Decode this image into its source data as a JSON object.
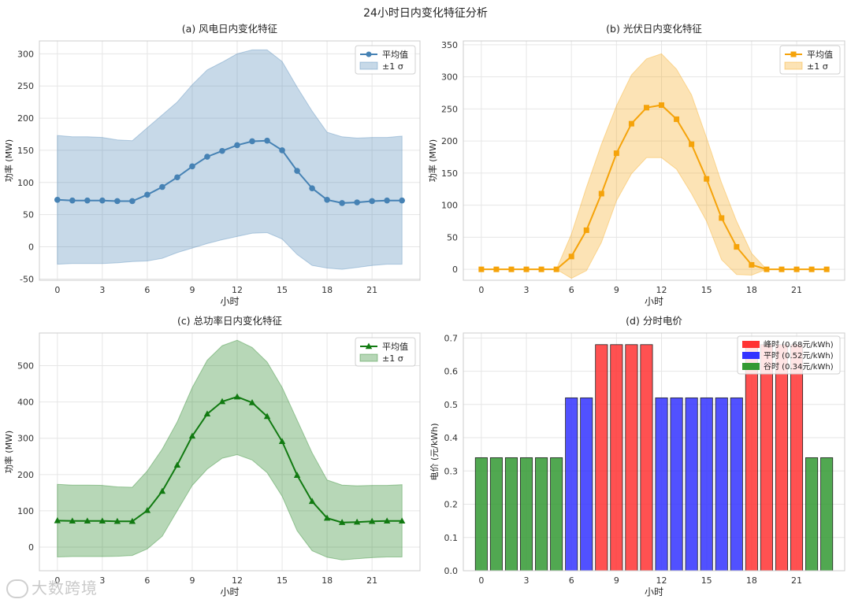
{
  "figure": {
    "suptitle": "24小时日内变化特征分析",
    "watermark": "大数跨境"
  },
  "chart_data": [
    {
      "id": "wind",
      "type": "line",
      "title": "(a) 风电日内变化特征",
      "xlabel": "小时",
      "ylabel": "功率 (MW)",
      "xlim": [
        -1.2,
        24.2
      ],
      "ylim": [
        -52,
        320
      ],
      "xticks": [
        0,
        3,
        6,
        9,
        12,
        15,
        18,
        21
      ],
      "yticks": [
        -50,
        0,
        50,
        100,
        150,
        200,
        250,
        300
      ],
      "grid": true,
      "legend_position": "top-right",
      "color": "#4682b4",
      "marker": "circle",
      "legend": [
        "平均值",
        "±1 σ"
      ],
      "x": [
        0,
        1,
        2,
        3,
        4,
        5,
        6,
        7,
        8,
        9,
        10,
        11,
        12,
        13,
        14,
        15,
        16,
        17,
        18,
        19,
        20,
        21,
        22,
        23
      ],
      "mean": [
        73,
        72,
        72,
        72,
        71,
        71,
        81,
        93,
        108,
        125,
        140,
        149,
        158,
        164,
        165,
        150,
        118,
        91,
        73,
        68,
        69,
        71,
        72,
        72
      ],
      "upper": [
        173,
        171,
        171,
        170,
        166,
        165,
        185,
        205,
        225,
        252,
        275,
        287,
        300,
        306,
        306,
        288,
        248,
        211,
        178,
        171,
        169,
        170,
        170,
        172
      ],
      "lower": [
        -27,
        -26,
        -26,
        -26,
        -25,
        -23,
        -22,
        -18,
        -9,
        -2,
        5,
        11,
        16,
        21,
        22,
        12,
        -12,
        -29,
        -33,
        -35,
        -32,
        -29,
        -27,
        -27
      ]
    },
    {
      "id": "pv",
      "type": "line",
      "title": "(b) 光伏日内变化特征",
      "xlabel": "小时",
      "ylabel": "功率 (MW)",
      "xlim": [
        -1.2,
        24.2
      ],
      "ylim": [
        -17,
        356
      ],
      "xticks": [
        0,
        3,
        6,
        9,
        12,
        15,
        18,
        21
      ],
      "yticks": [
        0,
        50,
        100,
        150,
        200,
        250,
        300,
        350
      ],
      "grid": true,
      "legend_position": "top-right",
      "color": "#f5a30a",
      "marker": "square",
      "legend": [
        "平均值",
        "±1 σ"
      ],
      "x": [
        0,
        1,
        2,
        3,
        4,
        5,
        6,
        7,
        8,
        9,
        10,
        11,
        12,
        13,
        14,
        15,
        16,
        17,
        18,
        19,
        20,
        21,
        22,
        23
      ],
      "mean": [
        0,
        0,
        0,
        0,
        0,
        0,
        20,
        61,
        118,
        181,
        227,
        252,
        256,
        234,
        195,
        141,
        80,
        35,
        7,
        0,
        0,
        0,
        0,
        0
      ],
      "upper": [
        0,
        0,
        0,
        0,
        0,
        0,
        55,
        128,
        195,
        255,
        303,
        328,
        336,
        312,
        272,
        205,
        135,
        75,
        25,
        0,
        0,
        0,
        0,
        0
      ],
      "lower": [
        0,
        0,
        0,
        0,
        0,
        0,
        -14,
        -2,
        42,
        107,
        149,
        174,
        174,
        156,
        118,
        75,
        15,
        -8,
        -9,
        0,
        0,
        0,
        0,
        0
      ]
    },
    {
      "id": "total",
      "type": "line",
      "title": "(c) 总功率日内变化特征",
      "xlabel": "小时",
      "ylabel": "功率 (MW)",
      "xlim": [
        -1.2,
        24.2
      ],
      "ylim": [
        -65,
        590
      ],
      "xticks": [
        0,
        3,
        6,
        9,
        12,
        15,
        18,
        21
      ],
      "yticks": [
        0,
        100,
        200,
        300,
        400,
        500
      ],
      "grid": true,
      "legend_position": "top-right",
      "color": "#117a11",
      "marker": "triangle",
      "legend": [
        "平均值",
        "±1 σ"
      ],
      "x": [
        0,
        1,
        2,
        3,
        4,
        5,
        6,
        7,
        8,
        9,
        10,
        11,
        12,
        13,
        14,
        15,
        16,
        17,
        18,
        19,
        20,
        21,
        22,
        23
      ],
      "mean": [
        73,
        72,
        72,
        72,
        71,
        71,
        101,
        154,
        226,
        306,
        367,
        401,
        414,
        398,
        360,
        291,
        198,
        126,
        80,
        68,
        69,
        71,
        72,
        72
      ],
      "upper": [
        173,
        171,
        171,
        170,
        166,
        165,
        210,
        270,
        345,
        440,
        515,
        555,
        570,
        550,
        510,
        440,
        350,
        260,
        185,
        171,
        169,
        170,
        170,
        172
      ],
      "lower": [
        -27,
        -26,
        -26,
        -26,
        -25,
        -23,
        -5,
        30,
        100,
        170,
        215,
        245,
        255,
        240,
        205,
        140,
        45,
        -10,
        -28,
        -35,
        -32,
        -29,
        -27,
        -27
      ]
    },
    {
      "id": "price",
      "type": "bar",
      "title": "(d) 分时电价",
      "xlabel": "小时",
      "ylabel": "电价 (元/kWh)",
      "xlim": [
        -1.2,
        24.2
      ],
      "ylim": [
        0,
        0.715
      ],
      "xticks": [
        0,
        3,
        6,
        9,
        12,
        15,
        18,
        21
      ],
      "yticks": [
        0.0,
        0.1,
        0.2,
        0.3,
        0.4,
        0.5,
        0.6,
        0.7
      ],
      "grid": true,
      "legend_position": "top-right",
      "legend": [
        {
          "label": "峰时 (0.68元/kWh)",
          "color": "#ff3333"
        },
        {
          "label": "平时 (0.52元/kWh)",
          "color": "#3333ff"
        },
        {
          "label": "谷时 (0.34元/kWh)",
          "color": "#339933"
        }
      ],
      "x": [
        0,
        1,
        2,
        3,
        4,
        5,
        6,
        7,
        8,
        9,
        10,
        11,
        12,
        13,
        14,
        15,
        16,
        17,
        18,
        19,
        20,
        21,
        22,
        23
      ],
      "values": [
        0.34,
        0.34,
        0.34,
        0.34,
        0.34,
        0.34,
        0.52,
        0.52,
        0.68,
        0.68,
        0.68,
        0.68,
        0.52,
        0.52,
        0.52,
        0.52,
        0.52,
        0.52,
        0.68,
        0.68,
        0.68,
        0.68,
        0.34,
        0.34
      ],
      "colors": [
        "#339933",
        "#339933",
        "#339933",
        "#339933",
        "#339933",
        "#339933",
        "#3333ff",
        "#3333ff",
        "#ff3333",
        "#ff3333",
        "#ff3333",
        "#ff3333",
        "#3333ff",
        "#3333ff",
        "#3333ff",
        "#3333ff",
        "#3333ff",
        "#3333ff",
        "#ff3333",
        "#ff3333",
        "#ff3333",
        "#ff3333",
        "#339933",
        "#339933"
      ]
    }
  ]
}
